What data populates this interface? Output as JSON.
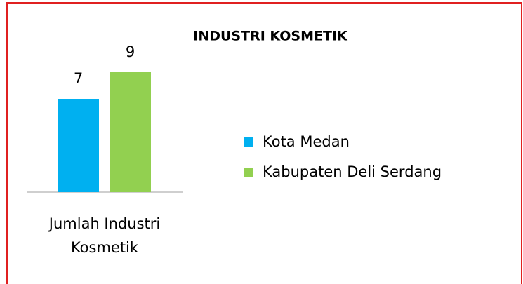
{
  "chart_data": {
    "type": "bar",
    "title": "INDUSTRI KOSMETIK",
    "categories": [
      "Jumlah Industri Kosmetik"
    ],
    "series": [
      {
        "name": "Kota Medan",
        "color": "#00b0f0",
        "values": [
          7
        ]
      },
      {
        "name": "Kabupaten Deli Serdang",
        "color": "#92d050",
        "values": [
          9
        ]
      }
    ],
    "legend": "right"
  }
}
